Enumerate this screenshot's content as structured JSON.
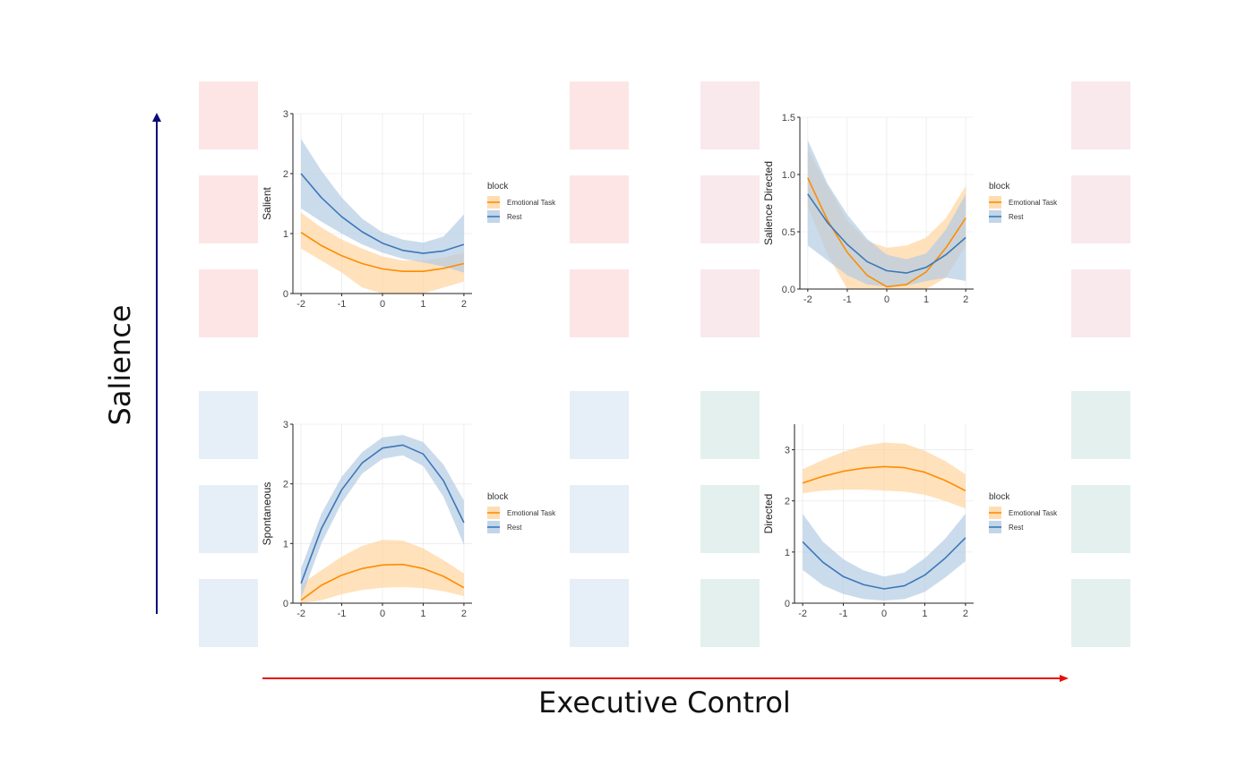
{
  "figure": {
    "y_axis_title": "Salience",
    "x_axis_title": "Executive Control",
    "colors": {
      "y_arrow": "#0a0a78",
      "x_arrow": "#e8100c",
      "pink": "#fde5e6",
      "mauve": "#f9e8ec",
      "blue": "#e6eef7",
      "teal": "#e3f0ee",
      "orange": "#ff8c00",
      "orange_band": "#ffd4a0",
      "blue_line": "#3d78b6",
      "blue_band": "#b3cce4"
    }
  },
  "chart_data": [
    {
      "type": "line",
      "ylabel": "Salient",
      "xlabel": "",
      "xlim": [
        -2.2,
        2.2
      ],
      "ylim": [
        0,
        3
      ],
      "x_ticks": [
        "-2",
        "-1",
        "0",
        "1",
        "2"
      ],
      "y_ticks": [
        "0",
        "1",
        "2",
        "3"
      ],
      "legend_title": "block",
      "legend_position": "right",
      "series": [
        {
          "name": "Emotional Task",
          "color": "#ff8c00",
          "x": [
            -2,
            -1.5,
            -1,
            -0.5,
            0,
            0.5,
            1,
            1.5,
            2
          ],
          "y": [
            1.02,
            0.8,
            0.63,
            0.5,
            0.41,
            0.37,
            0.37,
            0.42,
            0.5
          ],
          "lower": [
            0.75,
            0.55,
            0.35,
            0.1,
            0.0,
            0.0,
            0.0,
            0.1,
            0.2
          ],
          "upper": [
            1.35,
            1.1,
            0.9,
            0.75,
            0.62,
            0.55,
            0.55,
            0.6,
            0.68
          ]
        },
        {
          "name": "Rest",
          "color": "#3d78b6",
          "x": [
            -2,
            -1.5,
            -1,
            -0.5,
            0,
            0.5,
            1,
            1.5,
            2
          ],
          "y": [
            2.0,
            1.6,
            1.28,
            1.03,
            0.84,
            0.72,
            0.67,
            0.71,
            0.82
          ],
          "lower": [
            1.42,
            1.2,
            1.0,
            0.82,
            0.68,
            0.58,
            0.52,
            0.45,
            0.35
          ],
          "upper": [
            2.58,
            2.05,
            1.6,
            1.25,
            1.02,
            0.9,
            0.85,
            0.95,
            1.32
          ]
        }
      ]
    },
    {
      "type": "line",
      "ylabel": "Salience Directed",
      "xlabel": "",
      "xlim": [
        -2.2,
        2.2
      ],
      "ylim": [
        0,
        1.5
      ],
      "x_ticks": [
        "-2",
        "-1",
        "0",
        "1",
        "2"
      ],
      "y_ticks": [
        "0.0",
        "0.5",
        "1.0",
        "1.5"
      ],
      "legend_title": "block",
      "legend_position": "right",
      "series": [
        {
          "name": "Emotional Task",
          "color": "#ff8c00",
          "x": [
            -2,
            -1.5,
            -1,
            -0.5,
            0,
            0.5,
            1,
            1.5,
            2
          ],
          "y": [
            0.97,
            0.6,
            0.32,
            0.12,
            0.02,
            0.04,
            0.15,
            0.36,
            0.62
          ],
          "lower": [
            0.72,
            0.3,
            0.0,
            0.0,
            0.0,
            0.0,
            0.0,
            0.1,
            0.38
          ],
          "upper": [
            1.22,
            0.9,
            0.6,
            0.42,
            0.36,
            0.38,
            0.45,
            0.62,
            0.9
          ]
        },
        {
          "name": "Rest",
          "color": "#3d78b6",
          "x": [
            -2,
            -1.5,
            -1,
            -0.5,
            0,
            0.5,
            1,
            1.5,
            2
          ],
          "y": [
            0.83,
            0.58,
            0.39,
            0.24,
            0.16,
            0.14,
            0.19,
            0.3,
            0.45
          ],
          "lower": [
            0.38,
            0.25,
            0.12,
            0.04,
            0.02,
            0.03,
            0.07,
            0.1,
            0.07
          ],
          "upper": [
            1.3,
            0.92,
            0.65,
            0.44,
            0.3,
            0.26,
            0.31,
            0.52,
            0.83
          ]
        }
      ]
    },
    {
      "type": "line",
      "ylabel": "Spontaneous",
      "xlabel": "",
      "xlim": [
        -2.2,
        2.2
      ],
      "ylim": [
        0,
        3
      ],
      "x_ticks": [
        "-2",
        "-1",
        "0",
        "1",
        "2"
      ],
      "y_ticks": [
        "0",
        "1",
        "2",
        "3"
      ],
      "legend_title": "block",
      "legend_position": "right",
      "series": [
        {
          "name": "Emotional Task",
          "color": "#ff8c00",
          "x": [
            -2,
            -1.5,
            -1,
            -0.5,
            0,
            0.5,
            1,
            1.5,
            2
          ],
          "y": [
            0.05,
            0.3,
            0.47,
            0.58,
            0.64,
            0.65,
            0.58,
            0.45,
            0.26
          ],
          "lower": [
            0.0,
            0.05,
            0.15,
            0.22,
            0.26,
            0.27,
            0.25,
            0.2,
            0.12
          ],
          "upper": [
            0.32,
            0.55,
            0.78,
            0.96,
            1.06,
            1.05,
            0.92,
            0.72,
            0.5
          ]
        },
        {
          "name": "Rest",
          "color": "#3d78b6",
          "x": [
            -2,
            -1.5,
            -1,
            -0.5,
            0,
            0.5,
            1,
            1.5,
            2
          ],
          "y": [
            0.33,
            1.25,
            1.9,
            2.35,
            2.6,
            2.65,
            2.5,
            2.05,
            1.35
          ],
          "lower": [
            0.08,
            1.0,
            1.68,
            2.17,
            2.42,
            2.48,
            2.3,
            1.78,
            0.98
          ],
          "upper": [
            0.58,
            1.5,
            2.12,
            2.53,
            2.78,
            2.82,
            2.7,
            2.32,
            1.72
          ]
        }
      ]
    },
    {
      "type": "line",
      "ylabel": "Directed",
      "xlabel": "",
      "xlim": [
        -2.2,
        2.2
      ],
      "ylim": [
        0,
        3.5
      ],
      "x_ticks": [
        "-2",
        "-1",
        "0",
        "1",
        "2"
      ],
      "y_ticks": [
        "0",
        "1",
        "2",
        "3"
      ],
      "legend_title": "block",
      "legend_position": "right",
      "series": [
        {
          "name": "Emotional Task",
          "color": "#ff8c00",
          "x": [
            -2,
            -1.5,
            -1,
            -0.5,
            0,
            0.5,
            1,
            1.5,
            2
          ],
          "y": [
            2.35,
            2.48,
            2.58,
            2.64,
            2.67,
            2.65,
            2.56,
            2.4,
            2.2
          ],
          "lower": [
            2.15,
            2.2,
            2.22,
            2.22,
            2.2,
            2.18,
            2.12,
            2.0,
            1.85
          ],
          "upper": [
            2.62,
            2.8,
            2.96,
            3.08,
            3.14,
            3.12,
            2.98,
            2.78,
            2.52
          ]
        },
        {
          "name": "Rest",
          "color": "#3d78b6",
          "x": [
            -2,
            -1.5,
            -1,
            -0.5,
            0,
            0.5,
            1,
            1.5,
            2
          ],
          "y": [
            1.2,
            0.8,
            0.52,
            0.36,
            0.28,
            0.34,
            0.55,
            0.88,
            1.28
          ],
          "lower": [
            0.65,
            0.35,
            0.18,
            0.08,
            0.05,
            0.08,
            0.22,
            0.5,
            0.82
          ],
          "upper": [
            1.75,
            1.2,
            0.86,
            0.64,
            0.52,
            0.6,
            0.88,
            1.26,
            1.75
          ]
        }
      ]
    }
  ]
}
